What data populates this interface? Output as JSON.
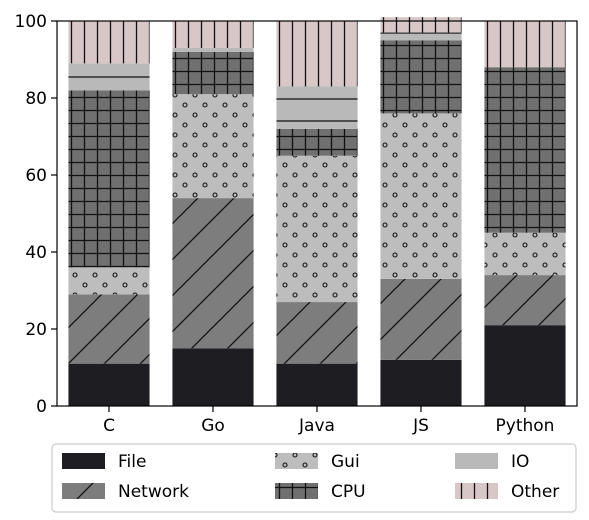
{
  "chart_data": {
    "type": "bar",
    "stacked": true,
    "title": "",
    "xlabel": "",
    "ylabel": "",
    "ylim": [
      0,
      100
    ],
    "yticks": [
      0,
      20,
      40,
      60,
      80,
      100
    ],
    "grid": false,
    "legend_position": "bottom",
    "categories": [
      "C",
      "Go",
      "Java",
      "JS",
      "Python"
    ],
    "series": [
      {
        "name": "File",
        "color": "#1e1e22",
        "pattern": "solid",
        "values": [
          11,
          15,
          11,
          12,
          21
        ]
      },
      {
        "name": "Network",
        "color": "#7d7d7d",
        "pattern": "diagonal-hatch",
        "values": [
          18,
          39,
          16,
          21,
          13
        ]
      },
      {
        "name": "Gui",
        "color": "#bdbdbd",
        "pattern": "dots",
        "values": [
          7,
          27,
          38,
          43,
          11
        ]
      },
      {
        "name": "CPU",
        "color": "#707070",
        "pattern": "grid-hatch",
        "values": [
          46,
          11,
          7,
          19,
          43
        ]
      },
      {
        "name": "IO",
        "color": "#b9b9b9",
        "pattern": "horizontal-line",
        "values": [
          7,
          1,
          11,
          2,
          0
        ]
      },
      {
        "name": "Other",
        "color": "#d7c7c7",
        "pattern": "vertical-hatch",
        "values": [
          11,
          7,
          17,
          4,
          12
        ]
      }
    ]
  }
}
